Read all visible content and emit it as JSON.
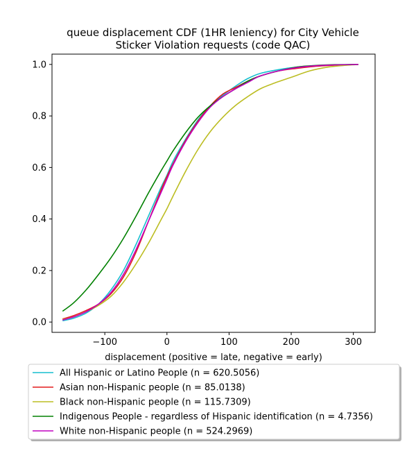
{
  "chart_data": {
    "type": "line",
    "title": [
      "queue displacement CDF (1HR leniency) for City Vehicle",
      "Sticker Violation  requests (code QAC)"
    ],
    "xlabel": "displacement (positive = late, negative = early)",
    "ylabel": "",
    "xlim": [
      -185,
      335
    ],
    "ylim": [
      -0.04,
      1.04
    ],
    "x_ticks": [
      -100,
      0,
      100,
      200,
      300
    ],
    "x_tick_labels": [
      "−100",
      "0",
      "100",
      "200",
      "300"
    ],
    "y_ticks": [
      0.0,
      0.2,
      0.4,
      0.6,
      0.8,
      1.0
    ],
    "y_tick_labels": [
      "0.0",
      "0.2",
      "0.4",
      "0.6",
      "0.8",
      "1.0"
    ],
    "grid": false,
    "legend_position": "below plot",
    "series": [
      {
        "name": "All Hispanic or Latino People (n = 620.5056)",
        "color": "#17becf",
        "points": [
          [
            -168,
            0.005
          ],
          [
            -150,
            0.015
          ],
          [
            -130,
            0.035
          ],
          [
            -110,
            0.07
          ],
          [
            -90,
            0.125
          ],
          [
            -70,
            0.2
          ],
          [
            -50,
            0.3
          ],
          [
            -30,
            0.41
          ],
          [
            -10,
            0.52
          ],
          [
            0,
            0.57
          ],
          [
            10,
            0.625
          ],
          [
            30,
            0.71
          ],
          [
            50,
            0.785
          ],
          [
            70,
            0.84
          ],
          [
            90,
            0.88
          ],
          [
            110,
            0.915
          ],
          [
            130,
            0.945
          ],
          [
            150,
            0.965
          ],
          [
            180,
            0.98
          ],
          [
            210,
            0.99
          ],
          [
            240,
            0.995
          ],
          [
            270,
            0.998
          ],
          [
            308,
            1.0
          ]
        ]
      },
      {
        "name": "Asian non-Hispanic people (n = 85.0138)",
        "color": "#e31a1c",
        "points": [
          [
            -168,
            0.012
          ],
          [
            -150,
            0.025
          ],
          [
            -130,
            0.045
          ],
          [
            -110,
            0.07
          ],
          [
            -90,
            0.11
          ],
          [
            -70,
            0.175
          ],
          [
            -50,
            0.27
          ],
          [
            -30,
            0.39
          ],
          [
            -10,
            0.51
          ],
          [
            0,
            0.565
          ],
          [
            10,
            0.615
          ],
          [
            30,
            0.705
          ],
          [
            50,
            0.78
          ],
          [
            70,
            0.84
          ],
          [
            90,
            0.885
          ],
          [
            110,
            0.91
          ],
          [
            130,
            0.935
          ],
          [
            150,
            0.955
          ],
          [
            180,
            0.975
          ],
          [
            210,
            0.985
          ],
          [
            240,
            0.993
          ],
          [
            270,
            0.997
          ],
          [
            308,
            1.0
          ]
        ]
      },
      {
        "name": "Black non-Hispanic people (n = 115.7309)",
        "color": "#bcbd22",
        "points": [
          [
            -168,
            0.01
          ],
          [
            -150,
            0.02
          ],
          [
            -130,
            0.04
          ],
          [
            -110,
            0.065
          ],
          [
            -90,
            0.1
          ],
          [
            -70,
            0.155
          ],
          [
            -50,
            0.225
          ],
          [
            -30,
            0.305
          ],
          [
            -10,
            0.395
          ],
          [
            0,
            0.44
          ],
          [
            10,
            0.49
          ],
          [
            30,
            0.585
          ],
          [
            50,
            0.67
          ],
          [
            70,
            0.74
          ],
          [
            90,
            0.795
          ],
          [
            110,
            0.84
          ],
          [
            130,
            0.875
          ],
          [
            150,
            0.905
          ],
          [
            170,
            0.925
          ],
          [
            200,
            0.95
          ],
          [
            230,
            0.975
          ],
          [
            260,
            0.99
          ],
          [
            290,
            0.997
          ],
          [
            308,
            1.0
          ]
        ]
      },
      {
        "name": "Indigenous People - regardless of Hispanic identification (n = 4.7356)",
        "color": "#008000",
        "points": [
          [
            -168,
            0.042
          ],
          [
            -150,
            0.075
          ],
          [
            -130,
            0.125
          ],
          [
            -110,
            0.185
          ],
          [
            -90,
            0.25
          ],
          [
            -70,
            0.325
          ],
          [
            -50,
            0.41
          ],
          [
            -30,
            0.5
          ],
          [
            -10,
            0.585
          ],
          [
            0,
            0.625
          ],
          [
            10,
            0.665
          ],
          [
            30,
            0.735
          ],
          [
            50,
            0.795
          ],
          [
            70,
            0.84
          ],
          [
            90,
            0.875
          ],
          [
            110,
            0.905
          ],
          [
            130,
            0.935
          ],
          [
            150,
            0.955
          ],
          [
            180,
            0.975
          ],
          [
            210,
            0.99
          ],
          [
            240,
            0.996
          ],
          [
            270,
            0.999
          ],
          [
            308,
            1.0
          ]
        ]
      },
      {
        "name": "White non-Hispanic people (n = 524.2969)",
        "color": "#c000c0",
        "points": [
          [
            -168,
            0.008
          ],
          [
            -150,
            0.02
          ],
          [
            -130,
            0.04
          ],
          [
            -110,
            0.07
          ],
          [
            -90,
            0.115
          ],
          [
            -70,
            0.185
          ],
          [
            -50,
            0.28
          ],
          [
            -30,
            0.39
          ],
          [
            -10,
            0.5
          ],
          [
            0,
            0.555
          ],
          [
            10,
            0.61
          ],
          [
            30,
            0.7
          ],
          [
            50,
            0.775
          ],
          [
            70,
            0.835
          ],
          [
            90,
            0.875
          ],
          [
            110,
            0.905
          ],
          [
            130,
            0.93
          ],
          [
            150,
            0.955
          ],
          [
            180,
            0.975
          ],
          [
            210,
            0.988
          ],
          [
            240,
            0.995
          ],
          [
            270,
            0.998
          ],
          [
            308,
            1.0
          ]
        ]
      }
    ]
  }
}
